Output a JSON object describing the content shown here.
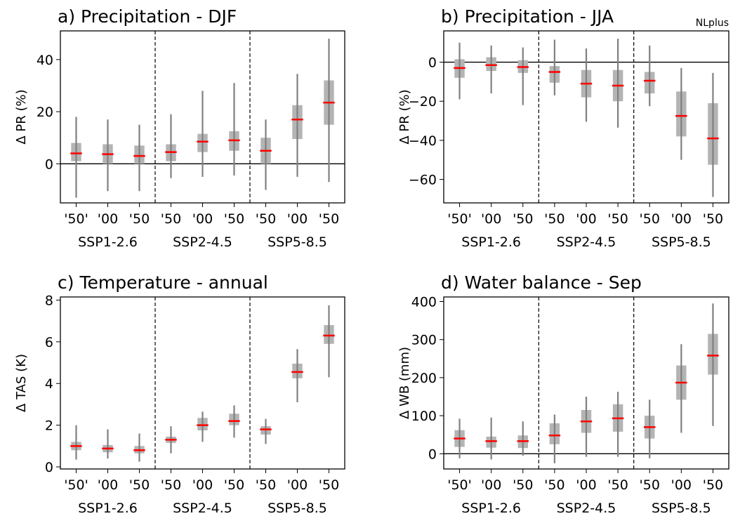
{
  "figure_note": "NLplus",
  "chart_data": [
    {
      "type": "boxplot",
      "title": "a) Precipitation - DJF",
      "ylabel": "Δ PR (%)",
      "ylim": [
        -15,
        51
      ],
      "yticks": [
        0,
        20,
        40
      ],
      "zero_line": true,
      "categories": [
        "'50'",
        "'00",
        "'50",
        "'50",
        "'00",
        "'50",
        "'50",
        "'00",
        "'50"
      ],
      "groups": [
        "SSP1-2.6",
        "SSP2-4.5",
        "SSP5-8.5"
      ],
      "group_size": 3,
      "boxes": [
        {
          "median": 4,
          "q1": 1,
          "q3": 8,
          "min": -13,
          "max": 18
        },
        {
          "median": 3.7,
          "q1": 0,
          "q3": 7.5,
          "min": -10.5,
          "max": 17
        },
        {
          "median": 3,
          "q1": 0,
          "q3": 7,
          "min": -10.5,
          "max": 15
        },
        {
          "median": 4.5,
          "q1": 1,
          "q3": 7.5,
          "min": -5.5,
          "max": 19
        },
        {
          "median": 8.5,
          "q1": 4.5,
          "q3": 11.5,
          "min": -5,
          "max": 28
        },
        {
          "median": 9,
          "q1": 5,
          "q3": 12.5,
          "min": -4.5,
          "max": 31
        },
        {
          "median": 5,
          "q1": 0,
          "q3": 10,
          "min": -10,
          "max": 17
        },
        {
          "median": 17,
          "q1": 9.5,
          "q3": 22.5,
          "min": -5,
          "max": 34.5
        },
        {
          "median": 23.5,
          "q1": 15,
          "q3": 32,
          "min": -7,
          "max": 48
        }
      ]
    },
    {
      "type": "boxplot",
      "title": "b) Precipitation - JJA",
      "ylabel": "Δ PR (%)",
      "ylim": [
        -72,
        16
      ],
      "yticks": [
        0,
        -20,
        -40,
        -60
      ],
      "zero_line": true,
      "categories": [
        "'50'",
        "'00",
        "'50",
        "'50",
        "'00",
        "'50",
        "'50",
        "'00",
        "'50"
      ],
      "groups": [
        "SSP1-2.6",
        "SSP2-4.5",
        "SSP5-8.5"
      ],
      "group_size": 3,
      "boxes": [
        {
          "median": -3,
          "q1": -8,
          "q3": 1.5,
          "min": -19,
          "max": 10
        },
        {
          "median": -1.5,
          "q1": -4.5,
          "q3": 2.5,
          "min": -16,
          "max": 8.5
        },
        {
          "median": -2.5,
          "q1": -5.5,
          "q3": 1,
          "min": -22,
          "max": 7.5
        },
        {
          "median": -5,
          "q1": -10.5,
          "q3": -2,
          "min": -17,
          "max": 11.5
        },
        {
          "median": -11,
          "q1": -18,
          "q3": -4,
          "min": -30.5,
          "max": 7
        },
        {
          "median": -12,
          "q1": -20,
          "q3": -4,
          "min": -33.5,
          "max": 12
        },
        {
          "median": -9.5,
          "q1": -16,
          "q3": -5,
          "min": -22.5,
          "max": 8.5
        },
        {
          "median": -27.5,
          "q1": -38,
          "q3": -15,
          "min": -50,
          "max": -3
        },
        {
          "median": -39,
          "q1": -52.5,
          "q3": -21,
          "min": -69,
          "max": -5.5
        }
      ]
    },
    {
      "type": "boxplot",
      "title": "c) Temperature - annual",
      "ylabel": "Δ TAS (K)",
      "ylim": [
        -0.1,
        8.15
      ],
      "yticks": [
        0,
        2,
        4,
        6,
        8
      ],
      "zero_line": false,
      "categories": [
        "'50'",
        "'00",
        "'50",
        "'50",
        "'00",
        "'50",
        "'50",
        "'00",
        "'50"
      ],
      "groups": [
        "SSP1-2.6",
        "SSP2-4.5",
        "SSP5-8.5"
      ],
      "group_size": 3,
      "boxes": [
        {
          "median": 1.0,
          "q1": 0.8,
          "q3": 1.2,
          "min": 0.35,
          "max": 2.0
        },
        {
          "median": 0.88,
          "q1": 0.7,
          "q3": 1.05,
          "min": 0.4,
          "max": 1.8
        },
        {
          "median": 0.8,
          "q1": 0.65,
          "q3": 1.0,
          "min": 0.25,
          "max": 1.6
        },
        {
          "median": 1.3,
          "q1": 1.15,
          "q3": 1.45,
          "min": 0.65,
          "max": 1.95
        },
        {
          "median": 2.0,
          "q1": 1.75,
          "q3": 2.35,
          "min": 1.2,
          "max": 2.65
        },
        {
          "median": 2.2,
          "q1": 2.0,
          "q3": 2.55,
          "min": 1.4,
          "max": 2.95
        },
        {
          "median": 1.8,
          "q1": 1.55,
          "q3": 1.95,
          "min": 1.1,
          "max": 2.3
        },
        {
          "median": 4.55,
          "q1": 4.25,
          "q3": 4.95,
          "min": 3.1,
          "max": 5.65
        },
        {
          "median": 6.3,
          "q1": 5.9,
          "q3": 6.8,
          "min": 4.3,
          "max": 7.75
        }
      ]
    },
    {
      "type": "boxplot",
      "title": "d) Water balance - Sep",
      "ylabel": "Δ WB (mm)",
      "ylim": [
        -40,
        412
      ],
      "yticks": [
        0,
        100,
        200,
        300,
        400
      ],
      "zero_line": true,
      "categories": [
        "'50'",
        "'00",
        "'50",
        "'50",
        "'00",
        "'50",
        "'50",
        "'00",
        "'50"
      ],
      "groups": [
        "SSP1-2.6",
        "SSP2-4.5",
        "SSP5-8.5"
      ],
      "group_size": 3,
      "boxes": [
        {
          "median": 40,
          "q1": 18,
          "q3": 62,
          "min": -12,
          "max": 92
        },
        {
          "median": 33,
          "q1": 16,
          "q3": 45,
          "min": -15,
          "max": 95
        },
        {
          "median": 33,
          "q1": 15,
          "q3": 48,
          "min": -5,
          "max": 85
        },
        {
          "median": 48,
          "q1": 25,
          "q3": 80,
          "min": -25,
          "max": 103
        },
        {
          "median": 85,
          "q1": 55,
          "q3": 115,
          "min": -8,
          "max": 150
        },
        {
          "median": 93,
          "q1": 58,
          "q3": 130,
          "min": -8,
          "max": 163
        },
        {
          "median": 70,
          "q1": 40,
          "q3": 100,
          "min": -12,
          "max": 142
        },
        {
          "median": 187,
          "q1": 142,
          "q3": 232,
          "min": 55,
          "max": 288
        },
        {
          "median": 258,
          "q1": 208,
          "q3": 315,
          "min": 73,
          "max": 395
        }
      ]
    }
  ]
}
